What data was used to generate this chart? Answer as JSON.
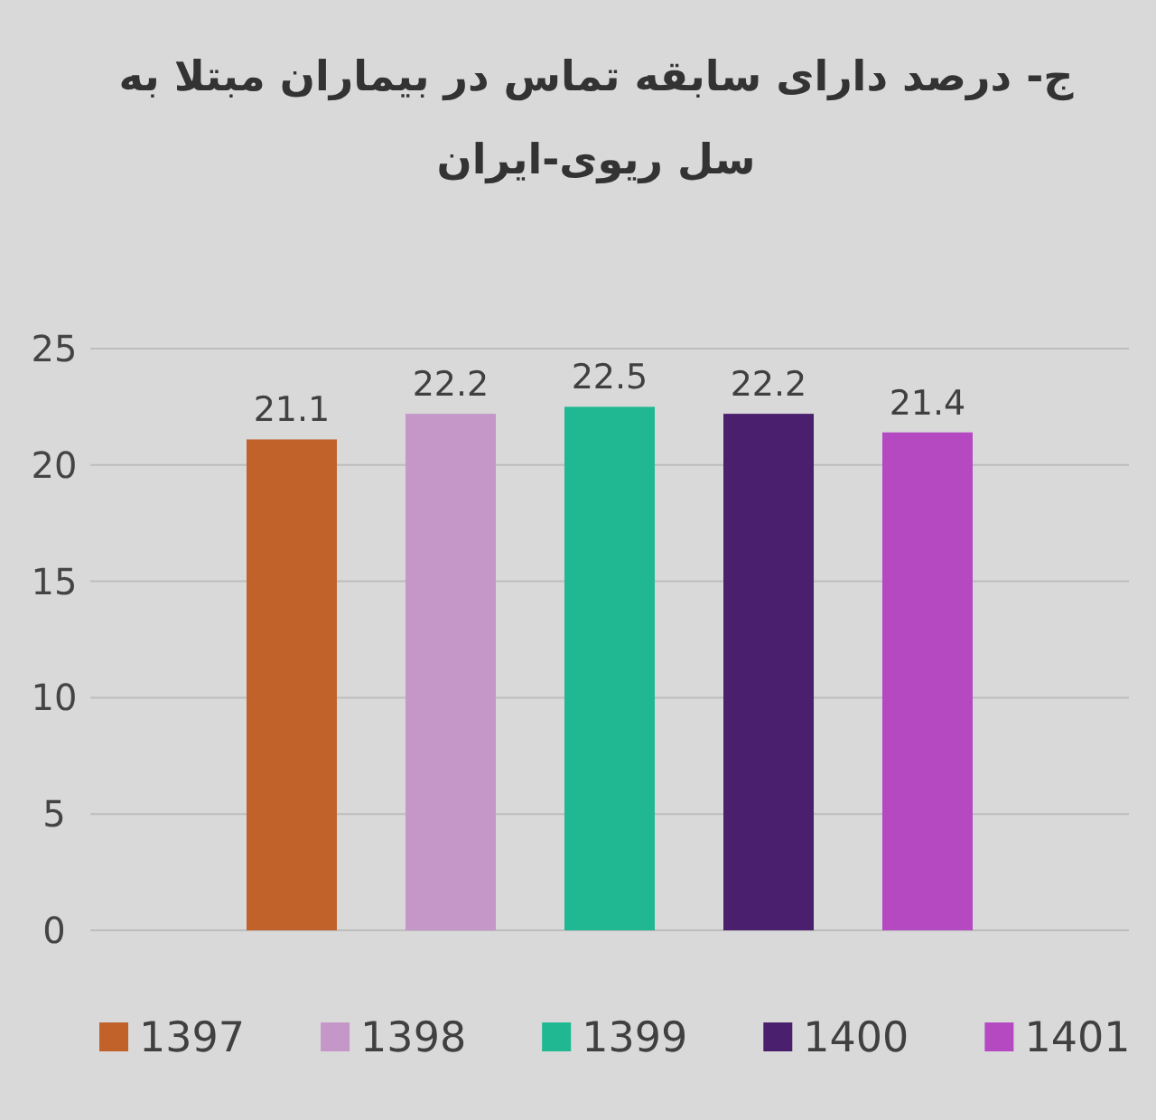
{
  "chart_data": {
    "type": "bar",
    "title": "ج- درصد دارای سابقه تماس در بیماران مبتلا به سل ریوی-ایران",
    "categories": [
      null
    ],
    "series": [
      {
        "name": "1397",
        "color": "#c0622a",
        "values": [
          21.1
        ]
      },
      {
        "name": "1398",
        "color": "#c596c8",
        "values": [
          22.2
        ]
      },
      {
        "name": "1399",
        "color": "#1fb892",
        "values": [
          22.5
        ]
      },
      {
        "name": "1400",
        "color": "#4a1f6e",
        "values": [
          22.2
        ]
      },
      {
        "name": "1401",
        "color": "#b449c2",
        "values": [
          21.4
        ]
      }
    ],
    "ylim": [
      0,
      25
    ],
    "yticks": [
      0,
      5,
      10,
      15,
      20,
      25
    ],
    "grid": "y",
    "legend": "bottom",
    "data_labels": true
  }
}
